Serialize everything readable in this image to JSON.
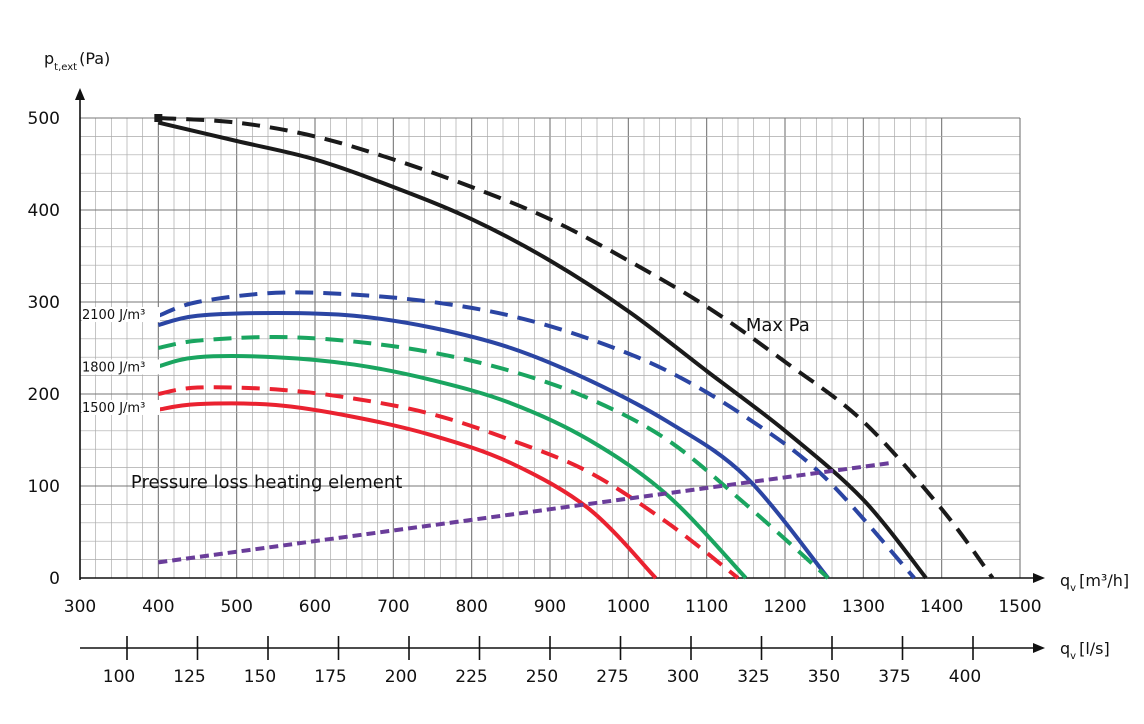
{
  "chart_data": {
    "type": "line",
    "y_axis": {
      "label": "p",
      "label_sub": "t,ext",
      "label_unit": "(Pa)",
      "range": [
        0,
        500
      ],
      "ticks": [
        "0",
        "100",
        "200",
        "300",
        "400",
        "500"
      ]
    },
    "x_axis": {
      "label": "q",
      "label_sub": "v",
      "label_unit": "[m³/h]",
      "range": [
        300,
        1500
      ],
      "ticks": [
        "300",
        "400",
        "500",
        "600",
        "700",
        "800",
        "900",
        "1000",
        "1100",
        "1200",
        "1300",
        "1400",
        "1500"
      ]
    },
    "x2_axis": {
      "label": "q",
      "label_sub": "v",
      "label_unit": "[l/s]",
      "ticks": [
        "100",
        "125",
        "150",
        "175",
        "200",
        "225",
        "250",
        "275",
        "300",
        "325",
        "350",
        "375",
        "400"
      ],
      "tick_values": [
        100,
        125,
        150,
        175,
        200,
        225,
        250,
        275,
        300,
        325,
        350,
        375,
        400
      ]
    },
    "grid": true,
    "colors": {
      "black": "#1a1a1a",
      "blue": "#2b45a3",
      "green": "#1aa560",
      "red": "#ea2230",
      "purple": "#6a3d9a"
    },
    "series": [
      {
        "color_key": "black",
        "style": "solid",
        "x": [
          400,
          500,
          600,
          700,
          800,
          900,
          1000,
          1100,
          1200,
          1300,
          1380
        ],
        "y": [
          495,
          475,
          455,
          425,
          390,
          345,
          290,
          225,
          160,
          85,
          0
        ]
      },
      {
        "color_key": "black",
        "style": "dashed",
        "x": [
          400,
          500,
          600,
          700,
          800,
          900,
          1000,
          1100,
          1200,
          1300,
          1400,
          1465
        ],
        "y": [
          500,
          495,
          480,
          455,
          425,
          390,
          345,
          295,
          235,
          170,
          75,
          0
        ]
      },
      {
        "color_key": "blue",
        "style": "solid",
        "x": [
          400,
          450,
          550,
          650,
          750,
          850,
          950,
          1050,
          1150,
          1255
        ],
        "y": [
          275,
          285,
          288,
          285,
          272,
          250,
          215,
          170,
          110,
          0
        ]
      },
      {
        "color_key": "blue",
        "style": "dashed",
        "x": [
          400,
          450,
          550,
          650,
          750,
          850,
          950,
          1050,
          1150,
          1250,
          1365
        ],
        "y": [
          285,
          300,
          310,
          308,
          300,
          285,
          260,
          225,
          175,
          110,
          0
        ]
      },
      {
        "color_key": "green",
        "style": "solid",
        "x": [
          400,
          450,
          550,
          650,
          750,
          850,
          950,
          1050,
          1150
        ],
        "y": [
          230,
          240,
          240,
          232,
          215,
          190,
          150,
          90,
          0
        ]
      },
      {
        "color_key": "green",
        "style": "dashed",
        "x": [
          400,
          450,
          550,
          650,
          750,
          850,
          950,
          1050,
          1150,
          1255
        ],
        "y": [
          250,
          258,
          262,
          257,
          245,
          225,
          195,
          150,
          80,
          0
        ]
      },
      {
        "color_key": "red",
        "style": "solid",
        "x": [
          400,
          450,
          550,
          650,
          750,
          850,
          950,
          1035
        ],
        "y": [
          183,
          189,
          188,
          175,
          155,
          125,
          75,
          0
        ]
      },
      {
        "color_key": "red",
        "style": "dashed",
        "x": [
          400,
          450,
          550,
          650,
          750,
          850,
          950,
          1050,
          1140
        ],
        "y": [
          200,
          207,
          205,
          195,
          178,
          150,
          115,
          60,
          0
        ]
      },
      {
        "color_key": "purple",
        "style": "dashed",
        "x": [
          400,
          1335
        ],
        "y": [
          17,
          125
        ]
      }
    ],
    "annotations": [
      {
        "text": "2100 J/m³",
        "x": 300,
        "y": 288
      },
      {
        "text": "1800 J/m³",
        "x": 300,
        "y": 231
      },
      {
        "text": "1500 J/m³",
        "x": 300,
        "y": 187
      },
      {
        "text": "Max Pa",
        "x": 1150,
        "y": 290
      },
      {
        "text": "Pressure loss heating element",
        "x": 365,
        "y": 115
      }
    ]
  }
}
